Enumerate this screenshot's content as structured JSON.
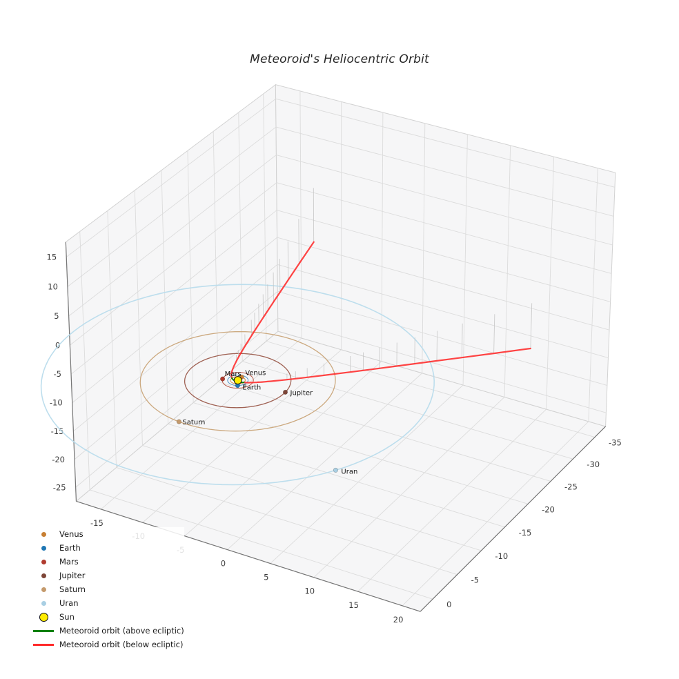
{
  "title": "Meteoroid's Heliocentric Orbit",
  "chart_data": {
    "type": "line",
    "projection": "3d",
    "title": "Meteoroid's Heliocentric Orbit",
    "view": {
      "elev_deg": 30,
      "azim_deg": -60,
      "perspective_dist": 10,
      "box_aspect": [
        4,
        4,
        3
      ],
      "y_axis_inverted": true
    },
    "axes": {
      "xlim": [
        -18,
        22
      ],
      "ylim_near": 2.5,
      "ylim_far": -37.5,
      "zlim": [
        -27.5,
        17.5
      ],
      "xticks": [
        -15,
        -10,
        -5,
        0,
        5,
        10,
        15,
        20
      ],
      "yticks": [
        0,
        -5,
        -10,
        -15,
        -20,
        -25,
        -30,
        -35
      ],
      "zticks": [
        -25,
        -20,
        -15,
        -10,
        -5,
        0,
        5,
        10,
        15
      ],
      "grid": true
    },
    "sun": {
      "label": "Sun",
      "color": "#ffec00",
      "edge_color": "#111111",
      "position_au": [
        0,
        0,
        0
      ]
    },
    "planets": [
      {
        "name": "Venus",
        "orbit_radius_au": 0.72,
        "angle_deg": -90,
        "color": "#c77f33",
        "orbit_color": "#cf8a3f",
        "label_offset": [
          5,
          -3
        ]
      },
      {
        "name": "Earth",
        "orbit_radius_au": 1.0,
        "angle_deg": 60,
        "color": "#1f77b4",
        "orbit_color": "#4a90c4",
        "label_offset": [
          7,
          6
        ]
      },
      {
        "name": "Mars",
        "orbit_radius_au": 1.52,
        "angle_deg": 160,
        "color": "#b03b2e",
        "orbit_color": "#b4503c",
        "label_offset": [
          3,
          -4
        ]
      },
      {
        "name": "Jupiter",
        "orbit_radius_au": 5.2,
        "angle_deg": -4,
        "color": "#7d4537",
        "orbit_color": "#9a594a",
        "label_offset": [
          7,
          4
        ]
      },
      {
        "name": "Saturn",
        "orbit_radius_au": 9.54,
        "angle_deg": 95,
        "color": "#c49a6c",
        "orbit_color": "#c9a478",
        "label_offset": [
          5,
          4
        ]
      },
      {
        "name": "Uran",
        "orbit_radius_au": 19.2,
        "angle_deg": 30,
        "color": "#a9cfe3",
        "orbit_color": "#b9dcec",
        "label_offset": [
          8,
          5
        ]
      }
    ],
    "meteoroid": {
      "perihelion_au": 0.35,
      "eccentricity": 1.086,
      "inclination_deg": 15,
      "node_deg": 6,
      "arg_perihelion_deg": 90,
      "nu_start_deg": -154.3,
      "nu_end_deg": 154.8,
      "ecliptic_cross_nu_deg": 90,
      "above_color": "#008000",
      "below_color": "#ff2a2a",
      "above_label": "Meteoroid orbit (above ecliptic)",
      "below_label": "Meteoroid orbit (below ecliptic)",
      "stems": {
        "min_r_au": 5,
        "color": "#c4c4c4"
      }
    },
    "legend": {
      "entries": [
        {
          "label": "Venus",
          "marker": "dot",
          "color": "#c77f33"
        },
        {
          "label": "Earth",
          "marker": "dot",
          "color": "#1f77b4"
        },
        {
          "label": "Mars",
          "marker": "dot",
          "color": "#b03b2e"
        },
        {
          "label": "Jupiter",
          "marker": "dot",
          "color": "#7d4537"
        },
        {
          "label": "Saturn",
          "marker": "dot",
          "color": "#c49a6c"
        },
        {
          "label": "Uran",
          "marker": "dot",
          "color": "#a9cfe3"
        },
        {
          "label": "Sun",
          "marker": "dot-large",
          "color": "#ffec00",
          "edge_color": "#111111"
        },
        {
          "label": "Meteoroid orbit (above ecliptic)",
          "marker": "line",
          "color": "#008000"
        },
        {
          "label": "Meteoroid orbit (below ecliptic)",
          "marker": "line",
          "color": "#ff2a2a"
        }
      ]
    },
    "style": {
      "pane_color": "#f6f6f7",
      "grid_color": "#dcdcdc",
      "pane_edge_color": "#d2d2d2",
      "spine_color": "#757575",
      "tick_label_color": "#3c3c3c",
      "planet_label_color": "#141414"
    }
  }
}
